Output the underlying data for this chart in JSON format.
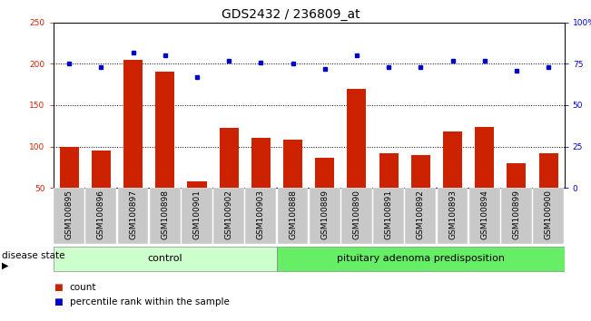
{
  "title": "GDS2432 / 236809_at",
  "categories": [
    "GSM100895",
    "GSM100896",
    "GSM100897",
    "GSM100898",
    "GSM100901",
    "GSM100902",
    "GSM100903",
    "GSM100888",
    "GSM100889",
    "GSM100890",
    "GSM100891",
    "GSM100892",
    "GSM100893",
    "GSM100894",
    "GSM100899",
    "GSM100900"
  ],
  "bar_values": [
    100,
    95,
    205,
    190,
    58,
    122,
    110,
    108,
    86,
    170,
    92,
    90,
    118,
    124,
    80,
    92
  ],
  "dot_values": [
    75,
    73,
    82,
    80,
    67,
    77,
    76,
    75,
    72,
    80,
    73,
    73,
    77,
    77,
    71,
    73
  ],
  "bar_color": "#cc2200",
  "dot_color": "#0000cc",
  "ylim_left": [
    50,
    250
  ],
  "ylim_right": [
    0,
    100
  ],
  "yticks_left": [
    50,
    100,
    150,
    200,
    250
  ],
  "yticks_right": [
    0,
    25,
    50,
    75,
    100
  ],
  "ytick_labels_right": [
    "0",
    "25",
    "50",
    "75",
    "100%"
  ],
  "control_count": 7,
  "total_count": 16,
  "group1_label": "control",
  "group2_label": "pituitary adenoma predisposition",
  "disease_state_label": "disease state",
  "legend_bar": "count",
  "legend_dot": "percentile rank within the sample",
  "grid_color": "#000000",
  "xtick_bg_color": "#c8c8c8",
  "group1_color": "#ccffcc",
  "group2_color": "#66ee66",
  "title_fontsize": 10,
  "tick_fontsize": 6.5,
  "legend_fontsize": 7.5,
  "band_fontsize": 8,
  "disease_state_fontsize": 7.5
}
